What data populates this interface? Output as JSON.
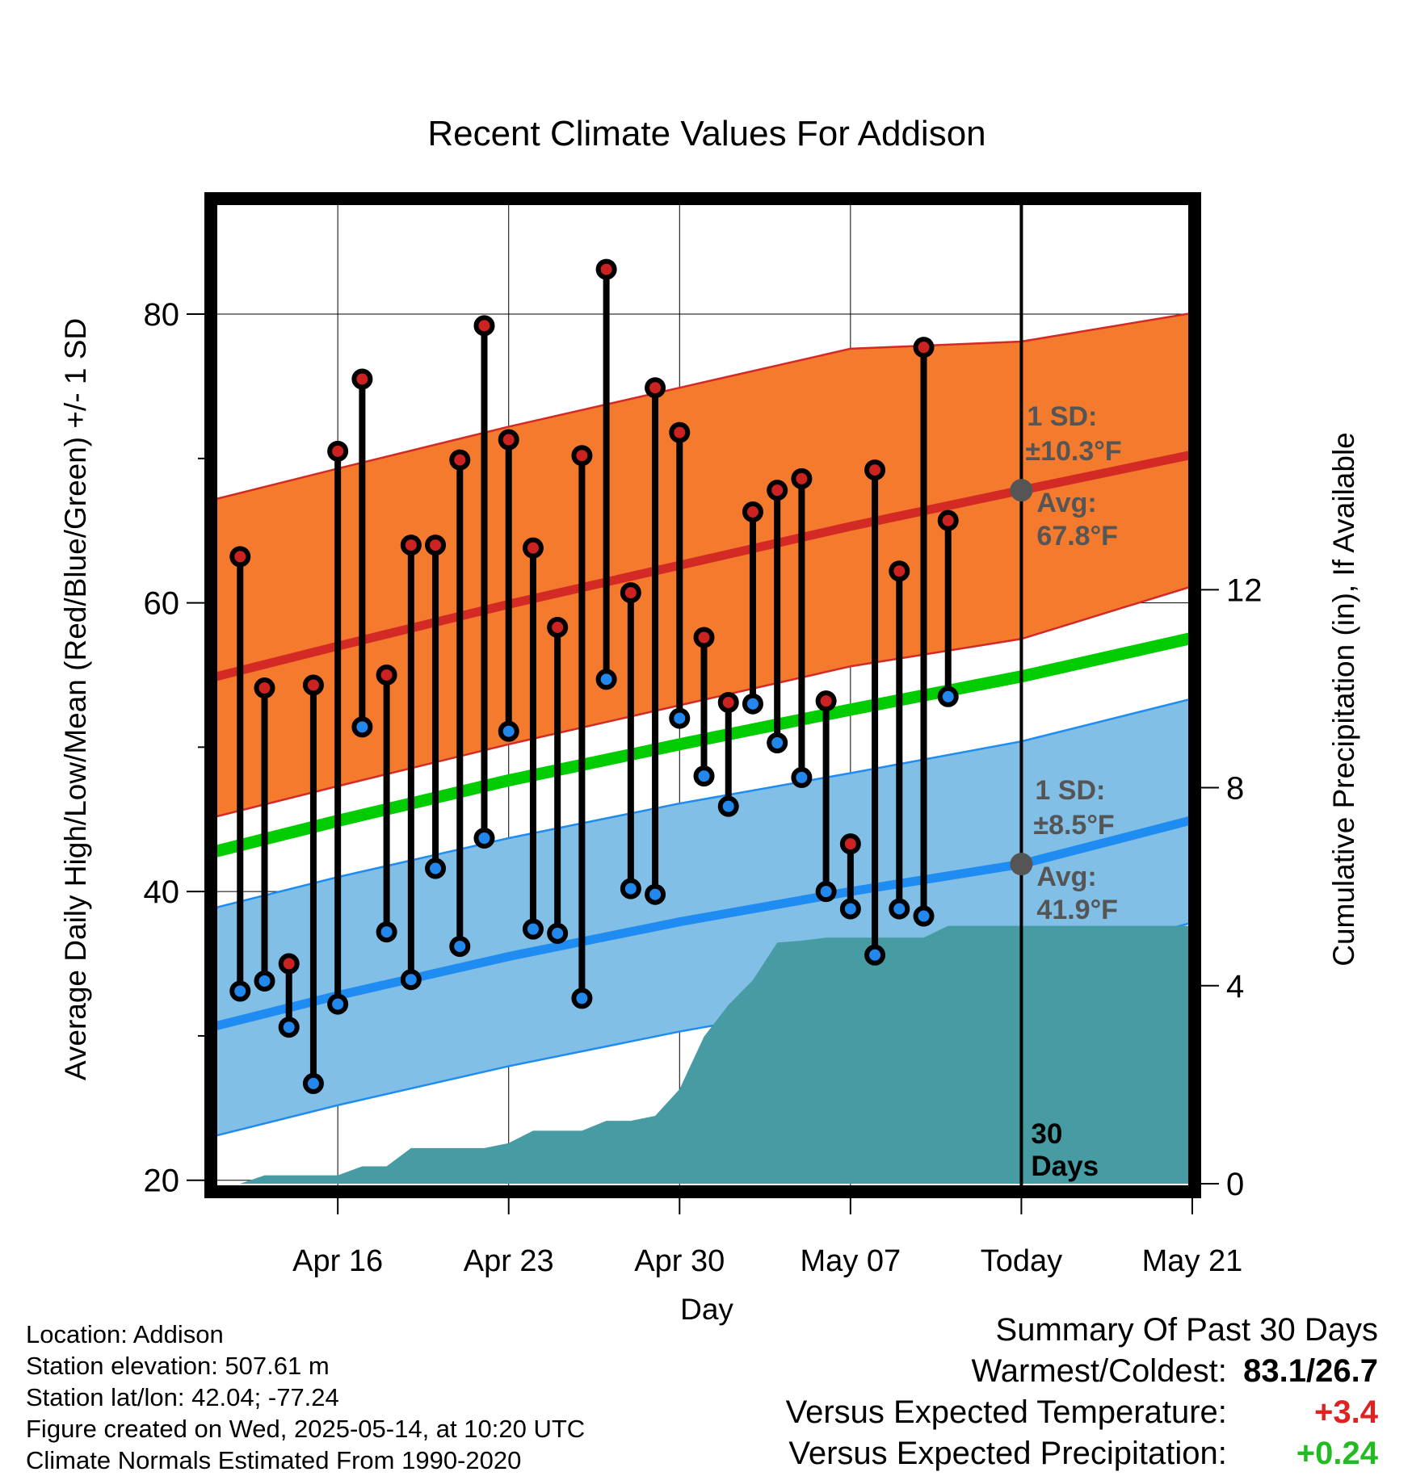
{
  "chart_data": {
    "type": "line",
    "title": "Recent Climate Values For Addison",
    "xlabel": "Day",
    "ylabel": "Average Daily High/Low/Mean (Red/Blue/Green) +/- 1 SD",
    "y2label": "Cumulative Precipitation (in), If Available",
    "x_range_days": [
      -33.2,
      7.1
    ],
    "xticks": [
      {
        "day": -28,
        "label": "Apr 16"
      },
      {
        "day": -21,
        "label": "Apr 23"
      },
      {
        "day": -14,
        "label": "Apr 30"
      },
      {
        "day": -7,
        "label": "May 07"
      },
      {
        "day": 0,
        "label": "Today"
      },
      {
        "day": 7,
        "label": "May 21"
      }
    ],
    "ylim": [
      19.2,
      88
    ],
    "yticks": [
      20,
      40,
      60,
      80
    ],
    "y2lim": [
      0,
      19.9
    ],
    "y2ticks": [
      0,
      4,
      8,
      12
    ],
    "grid": true,
    "today_label": [
      "30",
      "Days"
    ],
    "normals": {
      "x": [
        -33.2,
        -28,
        -21,
        -14,
        -7,
        0,
        7.1
      ],
      "high_avg": [
        54.8,
        57.0,
        59.9,
        62.6,
        65.3,
        67.8,
        70.3
      ],
      "high_plus_sd": [
        67.1,
        69.3,
        72.2,
        74.9,
        77.6,
        78.1,
        80.1
      ],
      "high_minus_sd": [
        45.1,
        47.3,
        50.2,
        52.9,
        55.6,
        57.5,
        61.2
      ],
      "low_avg": [
        30.6,
        32.8,
        35.5,
        37.9,
        40.0,
        41.9,
        45.0
      ],
      "low_plus_sd": [
        38.8,
        41.0,
        43.7,
        46.1,
        48.2,
        50.4,
        53.4
      ],
      "low_minus_sd": [
        23.0,
        25.2,
        27.9,
        30.3,
        32.4,
        34.6,
        37.9
      ],
      "mean_avg": [
        42.7,
        44.9,
        47.7,
        50.2,
        52.6,
        54.9,
        57.6
      ]
    },
    "series": [
      {
        "name": "High",
        "color": "#cc2222",
        "x": [
          -32,
          -31,
          -30,
          -29,
          -28,
          -27,
          -26,
          -25,
          -24,
          -23,
          -22,
          -21,
          -20,
          -19,
          -18,
          -17,
          -16,
          -15,
          -14,
          -13,
          -12,
          -11,
          -10,
          -9,
          -8,
          -7,
          -6,
          -5,
          -4,
          -3,
          -2,
          -1
        ],
        "values": [
          63.2,
          54.1,
          35.0,
          54.3,
          70.5,
          75.5,
          55.0,
          64.0,
          64.0,
          69.9,
          79.2,
          71.3,
          63.8,
          58.3,
          70.2,
          83.1,
          60.7,
          74.9,
          71.8,
          57.6,
          53.1,
          66.3,
          67.8,
          68.6,
          53.2,
          43.3,
          69.2,
          62.2,
          77.7,
          65.7,
          null,
          null
        ]
      },
      {
        "name": "Low",
        "color": "#2288ee",
        "x": [
          -32,
          -31,
          -30,
          -29,
          -28,
          -27,
          -26,
          -25,
          -24,
          -23,
          -22,
          -21,
          -20,
          -19,
          -18,
          -17,
          -16,
          -15,
          -14,
          -13,
          -12,
          -11,
          -10,
          -9,
          -8,
          -7,
          -6,
          -5,
          -4,
          -3,
          -2,
          -1
        ],
        "values": [
          33.1,
          33.8,
          30.6,
          26.7,
          32.2,
          51.4,
          37.2,
          33.9,
          41.6,
          36.2,
          43.7,
          51.1,
          37.4,
          37.1,
          32.6,
          54.7,
          40.2,
          39.8,
          52.0,
          48.0,
          45.9,
          53.0,
          50.3,
          47.9,
          40.0,
          38.8,
          35.6,
          38.8,
          38.3,
          53.5,
          null,
          null
        ]
      }
    ],
    "precip": {
      "x": [
        -33.2,
        -32,
        -31,
        -30,
        -29,
        -28,
        -27,
        -26,
        -25,
        -24,
        -23,
        -22,
        -21,
        -20,
        -19,
        -18,
        -17,
        -16,
        -15,
        -14,
        -13,
        -12,
        -11,
        -10,
        -9,
        -8,
        -7,
        -6,
        -5,
        -4,
        -3,
        -2,
        -1,
        0,
        7.1
      ],
      "values": [
        0,
        0,
        0.17,
        0.17,
        0.17,
        0.17,
        0.35,
        0.35,
        0.72,
        0.72,
        0.72,
        0.72,
        0.82,
        1.07,
        1.07,
        1.07,
        1.27,
        1.27,
        1.37,
        1.91,
        2.97,
        3.61,
        4.11,
        4.87,
        4.91,
        4.97,
        4.97,
        4.97,
        4.97,
        4.97,
        5.21,
        5.21,
        5.21,
        5.21,
        5.21
      ]
    },
    "annotations": {
      "high_sd_label": "1 SD:",
      "high_sd_value": "±10.3°F",
      "high_avg_label": "Avg:",
      "high_avg_value": "67.8°F",
      "high_avg_point": 67.8,
      "low_sd_label": "1 SD:",
      "low_sd_value": "±8.5°F",
      "low_avg_label": "Avg:",
      "low_avg_value": "41.9°F",
      "low_avg_point": 41.9
    },
    "colors": {
      "high_band": "#f47b2e",
      "high_line": "#d42a25",
      "low_band": "#82bfe6",
      "low_line": "#1e8cf0",
      "mean_line": "#00cc00",
      "precip_fill": "#479ba3",
      "annotation_text": "#555555",
      "avg_dot": "#555555"
    }
  },
  "info": {
    "location": "Location: Addison",
    "elevation": "Station elevation: 507.61 m",
    "latlon": "Station lat/lon: 42.04; -77.24",
    "created": "Figure created on Wed, 2025-05-14, at 10:20 UTC",
    "normals": "Climate Normals Estimated From 1990-2020"
  },
  "summary": {
    "title": "Summary Of Past 30 Days",
    "warmest_label": "Warmest/Coldest:",
    "warmest_value": "83.1/26.7",
    "temp_label": "Versus Expected Temperature:",
    "temp_value": "+3.4",
    "temp_color": "#dd2222",
    "precip_label": "Versus Expected Precipitation:",
    "precip_value": "+0.24",
    "precip_color": "#22bb22"
  }
}
